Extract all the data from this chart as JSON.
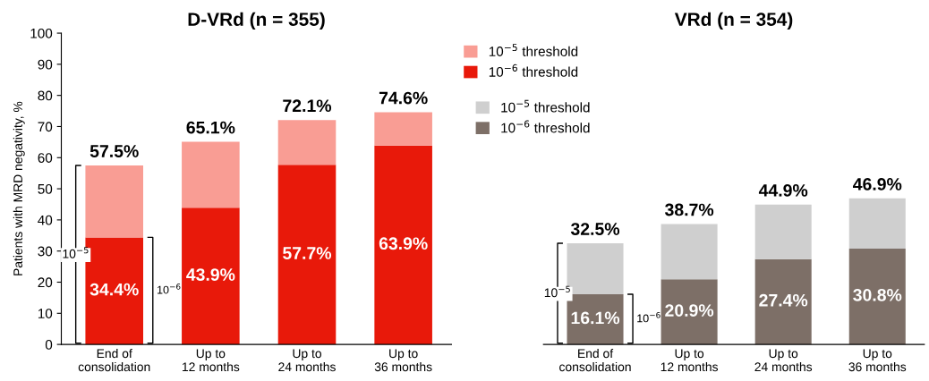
{
  "chart_data": [
    {
      "type": "bar",
      "title": "D-VRd (n = 355)",
      "ylabel": "Patients with MRD negativity, %",
      "stacked": true,
      "categories": [
        "End of\nconsolidation",
        "Up to\n12 months",
        "Up to\n24 months",
        "Up to\n36 months"
      ],
      "series": [
        {
          "name": "10$^{−6}$ threshold",
          "color": "#e8190a",
          "values": [
            34.4,
            43.9,
            57.7,
            63.9
          ],
          "value_labels": [
            "34.4%",
            "43.9%",
            "57.7%",
            "63.9%"
          ]
        },
        {
          "name": "10$^{−5}$ threshold",
          "color": "#f99d94",
          "values": [
            23.1,
            21.2,
            14.4,
            10.7
          ]
        }
      ],
      "totals": [
        "57.5%",
        "65.1%",
        "72.1%",
        "74.6%"
      ],
      "annotations": [
        "10$^{−5}$",
        "10$^{−6}$"
      ],
      "ylim": [
        0,
        100
      ],
      "yticks": [
        0,
        10,
        20,
        30,
        40,
        50,
        60,
        70,
        80,
        90,
        100
      ],
      "grid": false,
      "legend": "right"
    },
    {
      "type": "bar",
      "title": "VRd (n = 354)",
      "stacked": true,
      "categories": [
        "End of\nconsolidation",
        "Up to\n12 months",
        "Up to\n24 months",
        "Up to\n36 months"
      ],
      "series": [
        {
          "name": "10$^{−6}$ threshold",
          "color": "#7d6f67",
          "values": [
            16.1,
            20.9,
            27.4,
            30.8
          ],
          "value_labels": [
            "16.1%",
            "20.9%",
            "27.4%",
            "30.8%"
          ]
        },
        {
          "name": "10$^{−5}$ threshold",
          "color": "#cfcfcf",
          "values": [
            16.4,
            17.8,
            17.5,
            16.1
          ]
        }
      ],
      "totals": [
        "32.5%",
        "38.7%",
        "44.9%",
        "46.9%"
      ],
      "annotations": [
        "10$^{−5}$",
        "10$^{−6}$"
      ],
      "ylim": [
        0,
        100
      ],
      "tick_labels": "x",
      "grid": false,
      "legend": "top left"
    }
  ]
}
